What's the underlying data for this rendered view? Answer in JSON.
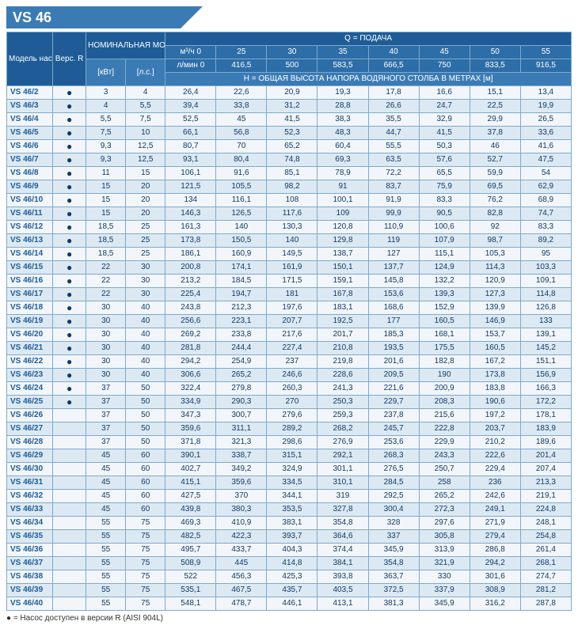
{
  "title": "VS 46",
  "header": {
    "model": "Модель насоса",
    "ver": "Верс. R",
    "power": "НОМИНАЛЬНАЯ МОЩНОСТЬ",
    "q_label": "Q = ПОДАЧА",
    "m3h": "м³/ч 0",
    "lmin": "л/мин 0",
    "h_label": "H = ОБЩАЯ ВЫСОТА НАПОРА ВОДЯНОГО СТОЛБА В МЕТРАХ [м]",
    "kw": "[кВт]",
    "hp": "[л.с.]",
    "q_cols": [
      "25",
      "30",
      "35",
      "40",
      "45",
      "50",
      "55"
    ],
    "lmin_cols": [
      "416,5",
      "500",
      "583,5",
      "666,5",
      "750",
      "833,5",
      "916,5"
    ]
  },
  "footnote": "● = Насос доступен в версии R (AISI 904L)",
  "rows": [
    {
      "m": "VS 46/2",
      "r": "●",
      "kw": "3",
      "hp": "4",
      "v": [
        "26,4",
        "22,6",
        "20,9",
        "19,3",
        "17,8",
        "16,6",
        "15,1",
        "13,4"
      ]
    },
    {
      "m": "VS 46/3",
      "r": "●",
      "kw": "4",
      "hp": "5,5",
      "v": [
        "39,4",
        "33,8",
        "31,2",
        "28,8",
        "26,6",
        "24,7",
        "22,5",
        "19,9"
      ]
    },
    {
      "m": "VS 46/4",
      "r": "●",
      "kw": "5,5",
      "hp": "7,5",
      "v": [
        "52,5",
        "45",
        "41,5",
        "38,3",
        "35,5",
        "32,9",
        "29,9",
        "26,5"
      ]
    },
    {
      "m": "VS 46/5",
      "r": "●",
      "kw": "7,5",
      "hp": "10",
      "v": [
        "66,1",
        "56,8",
        "52,3",
        "48,3",
        "44,7",
        "41,5",
        "37,8",
        "33,6"
      ]
    },
    {
      "m": "VS 46/6",
      "r": "●",
      "kw": "9,3",
      "hp": "12,5",
      "v": [
        "80,7",
        "70",
        "65,2",
        "60,4",
        "55,5",
        "50,3",
        "46",
        "41,6"
      ]
    },
    {
      "m": "VS 46/7",
      "r": "●",
      "kw": "9,3",
      "hp": "12,5",
      "v": [
        "93,1",
        "80,4",
        "74,8",
        "69,3",
        "63,5",
        "57,6",
        "52,7",
        "47,5"
      ]
    },
    {
      "m": "VS 46/8",
      "r": "●",
      "kw": "11",
      "hp": "15",
      "v": [
        "106,1",
        "91,6",
        "85,1",
        "78,9",
        "72,2",
        "65,5",
        "59,9",
        "54"
      ]
    },
    {
      "m": "VS 46/9",
      "r": "●",
      "kw": "15",
      "hp": "20",
      "v": [
        "121,5",
        "105,5",
        "98,2",
        "91",
        "83,7",
        "75,9",
        "69,5",
        "62,9"
      ]
    },
    {
      "m": "VS 46/10",
      "r": "●",
      "kw": "15",
      "hp": "20",
      "v": [
        "134",
        "116,1",
        "108",
        "100,1",
        "91,9",
        "83,3",
        "76,2",
        "68,9"
      ]
    },
    {
      "m": "VS 46/11",
      "r": "●",
      "kw": "15",
      "hp": "20",
      "v": [
        "146,3",
        "126,5",
        "117,6",
        "109",
        "99,9",
        "90,5",
        "82,8",
        "74,7"
      ]
    },
    {
      "m": "VS 46/12",
      "r": "●",
      "kw": "18,5",
      "hp": "25",
      "v": [
        "161,3",
        "140",
        "130,3",
        "120,8",
        "110,9",
        "100,6",
        "92",
        "83,3"
      ]
    },
    {
      "m": "VS 46/13",
      "r": "●",
      "kw": "18,5",
      "hp": "25",
      "v": [
        "173,8",
        "150,5",
        "140",
        "129,8",
        "119",
        "107,9",
        "98,7",
        "89,2"
      ]
    },
    {
      "m": "VS 46/14",
      "r": "●",
      "kw": "18,5",
      "hp": "25",
      "v": [
        "186,1",
        "160,9",
        "149,5",
        "138,7",
        "127",
        "115,1",
        "105,3",
        "95"
      ]
    },
    {
      "m": "VS 46/15",
      "r": "●",
      "kw": "22",
      "hp": "30",
      "v": [
        "200,8",
        "174,1",
        "161,9",
        "150,1",
        "137,7",
        "124,9",
        "114,3",
        "103,3"
      ]
    },
    {
      "m": "VS 46/16",
      "r": "●",
      "kw": "22",
      "hp": "30",
      "v": [
        "213,2",
        "184,5",
        "171,5",
        "159,1",
        "145,8",
        "132,2",
        "120,9",
        "109,1"
      ]
    },
    {
      "m": "VS 46/17",
      "r": "●",
      "kw": "22",
      "hp": "30",
      "v": [
        "225,4",
        "194,7",
        "181",
        "167,8",
        "153,6",
        "139,3",
        "127,3",
        "114,8"
      ]
    },
    {
      "m": "VS 46/18",
      "r": "●",
      "kw": "30",
      "hp": "40",
      "v": [
        "243,8",
        "212,3",
        "197,6",
        "183,1",
        "168,6",
        "152,9",
        "139,9",
        "126,8"
      ]
    },
    {
      "m": "VS 46/19",
      "r": "●",
      "kw": "30",
      "hp": "40",
      "v": [
        "256,6",
        "223,1",
        "207,7",
        "192,5",
        "177",
        "160,5",
        "146,9",
        "133"
      ]
    },
    {
      "m": "VS 46/20",
      "r": "●",
      "kw": "30",
      "hp": "40",
      "v": [
        "269,2",
        "233,8",
        "217,6",
        "201,7",
        "185,3",
        "168,1",
        "153,7",
        "139,1"
      ]
    },
    {
      "m": "VS 46/21",
      "r": "●",
      "kw": "30",
      "hp": "40",
      "v": [
        "281,8",
        "244,4",
        "227,4",
        "210,8",
        "193,5",
        "175,5",
        "160,5",
        "145,2"
      ]
    },
    {
      "m": "VS 46/22",
      "r": "●",
      "kw": "30",
      "hp": "40",
      "v": [
        "294,2",
        "254,9",
        "237",
        "219,8",
        "201,6",
        "182,8",
        "167,2",
        "151,1"
      ]
    },
    {
      "m": "VS 46/23",
      "r": "●",
      "kw": "30",
      "hp": "40",
      "v": [
        "306,6",
        "265,2",
        "246,6",
        "228,6",
        "209,5",
        "190",
        "173,8",
        "156,9"
      ]
    },
    {
      "m": "VS 46/24",
      "r": "●",
      "kw": "37",
      "hp": "50",
      "v": [
        "322,4",
        "279,8",
        "260,3",
        "241,3",
        "221,6",
        "200,9",
        "183,8",
        "166,3"
      ]
    },
    {
      "m": "VS 46/25",
      "r": "●",
      "kw": "37",
      "hp": "50",
      "v": [
        "334,9",
        "290,3",
        "270",
        "250,3",
        "229,7",
        "208,3",
        "190,6",
        "172,2"
      ]
    },
    {
      "m": "VS 46/26",
      "r": "",
      "kw": "37",
      "hp": "50",
      "v": [
        "347,3",
        "300,7",
        "279,6",
        "259,3",
        "237,8",
        "215,6",
        "197,2",
        "178,1"
      ]
    },
    {
      "m": "VS 46/27",
      "r": "",
      "kw": "37",
      "hp": "50",
      "v": [
        "359,6",
        "311,1",
        "289,2",
        "268,2",
        "245,7",
        "222,8",
        "203,7",
        "183,9"
      ]
    },
    {
      "m": "VS 46/28",
      "r": "",
      "kw": "37",
      "hp": "50",
      "v": [
        "371,8",
        "321,3",
        "298,6",
        "276,9",
        "253,6",
        "229,9",
        "210,2",
        "189,6"
      ]
    },
    {
      "m": "VS 46/29",
      "r": "",
      "kw": "45",
      "hp": "60",
      "v": [
        "390,1",
        "338,7",
        "315,1",
        "292,1",
        "268,3",
        "243,3",
        "222,6",
        "201,4"
      ]
    },
    {
      "m": "VS 46/30",
      "r": "",
      "kw": "45",
      "hp": "60",
      "v": [
        "402,7",
        "349,2",
        "324,9",
        "301,1",
        "276,5",
        "250,7",
        "229,4",
        "207,4"
      ]
    },
    {
      "m": "VS 46/31",
      "r": "",
      "kw": "45",
      "hp": "60",
      "v": [
        "415,1",
        "359,6",
        "334,5",
        "310,1",
        "284,5",
        "258",
        "236",
        "213,3"
      ]
    },
    {
      "m": "VS 46/32",
      "r": "",
      "kw": "45",
      "hp": "60",
      "v": [
        "427,5",
        "370",
        "344,1",
        "319",
        "292,5",
        "265,2",
        "242,6",
        "219,1"
      ]
    },
    {
      "m": "VS 46/33",
      "r": "",
      "kw": "45",
      "hp": "60",
      "v": [
        "439,8",
        "380,3",
        "353,5",
        "327,8",
        "300,4",
        "272,3",
        "249,1",
        "224,8"
      ]
    },
    {
      "m": "VS 46/34",
      "r": "",
      "kw": "55",
      "hp": "75",
      "v": [
        "469,3",
        "410,9",
        "383,1",
        "354,8",
        "328",
        "297,6",
        "271,9",
        "248,1"
      ]
    },
    {
      "m": "VS 46/35",
      "r": "",
      "kw": "55",
      "hp": "75",
      "v": [
        "482,5",
        "422,3",
        "393,7",
        "364,6",
        "337",
        "305,8",
        "279,4",
        "254,8"
      ]
    },
    {
      "m": "VS 46/36",
      "r": "",
      "kw": "55",
      "hp": "75",
      "v": [
        "495,7",
        "433,7",
        "404,3",
        "374,4",
        "345,9",
        "313,9",
        "286,8",
        "261,4"
      ]
    },
    {
      "m": "VS 46/37",
      "r": "",
      "kw": "55",
      "hp": "75",
      "v": [
        "508,9",
        "445",
        "414,8",
        "384,1",
        "354,8",
        "321,9",
        "294,2",
        "268,1"
      ]
    },
    {
      "m": "VS 46/38",
      "r": "",
      "kw": "55",
      "hp": "75",
      "v": [
        "522",
        "456,3",
        "425,3",
        "393,8",
        "363,7",
        "330",
        "301,6",
        "274,7"
      ]
    },
    {
      "m": "VS 46/39",
      "r": "",
      "kw": "55",
      "hp": "75",
      "v": [
        "535,1",
        "467,5",
        "435,7",
        "403,5",
        "372,5",
        "337,9",
        "308,9",
        "281,2"
      ]
    },
    {
      "m": "VS 46/40",
      "r": "",
      "kw": "55",
      "hp": "75",
      "v": [
        "548,1",
        "478,7",
        "446,1",
        "413,1",
        "381,3",
        "345,9",
        "316,2",
        "287,8"
      ]
    }
  ]
}
